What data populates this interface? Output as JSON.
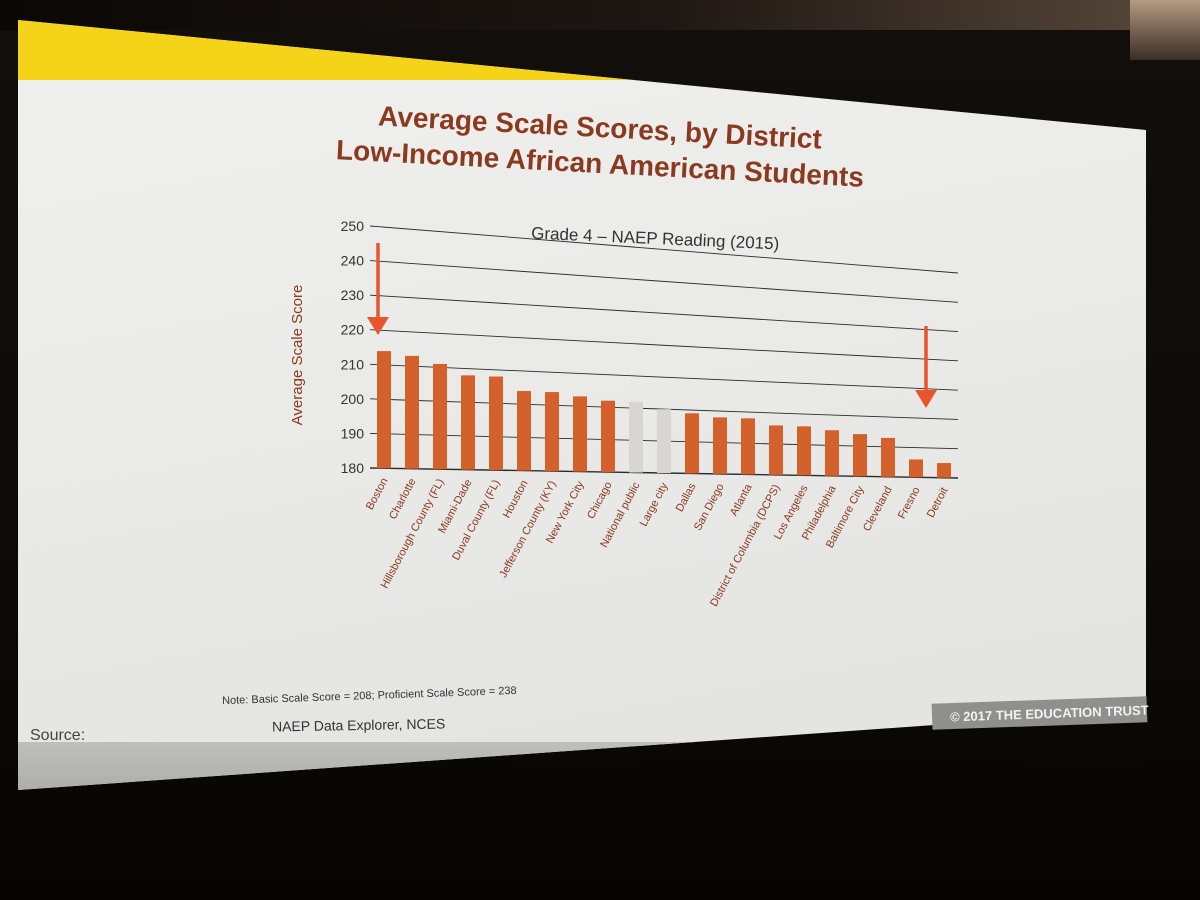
{
  "slide": {
    "title_line1": "Average Scale Scores, by District",
    "title_line2": "Low-Income African American Students",
    "note": "Note: Basic Scale Score = 208; Proficient Scale Score = 238",
    "source_label": "Source:",
    "source_value": "NAEP Data Explorer, NCES",
    "copyright": "© 2017 THE EDUCATION TRUST"
  },
  "colors": {
    "bar_default": "#d4602c",
    "bar_highlight": "#d9d6d2",
    "arrow": "#e8542b",
    "gridline": "#2b2b2b"
  },
  "chart_data": {
    "type": "bar",
    "title": "Grade 4 – NAEP Reading (2015)",
    "xlabel": "",
    "ylabel": "Average Scale Score",
    "ylim": [
      180,
      250
    ],
    "yticks": [
      180,
      190,
      200,
      210,
      220,
      230,
      240,
      250
    ],
    "grid": true,
    "categories": [
      "Boston",
      "Charlotte",
      "Hillsborough County (FL)",
      "Miami-Dade",
      "Duval County (FL)",
      "Houston",
      "Jefferson County (KY)",
      "New York City",
      "Chicago",
      "National public",
      "Large city",
      "Dallas",
      "San Diego",
      "Atlanta",
      "District of Columbia (DCPS)",
      "Los Angeles",
      "Philadelphia",
      "Baltimore City",
      "Cleveland",
      "Fresno",
      "Detroit"
    ],
    "values": [
      214,
      213,
      211,
      208,
      208,
      204,
      204,
      203,
      202,
      202,
      200,
      199,
      198,
      198,
      196,
      196,
      195,
      194,
      193,
      186,
      185
    ],
    "highlighted": [
      "National public",
      "Large city"
    ],
    "annotations": [
      {
        "type": "arrow-down",
        "target": "Boston"
      },
      {
        "type": "arrow-down",
        "target": "Detroit"
      }
    ]
  }
}
